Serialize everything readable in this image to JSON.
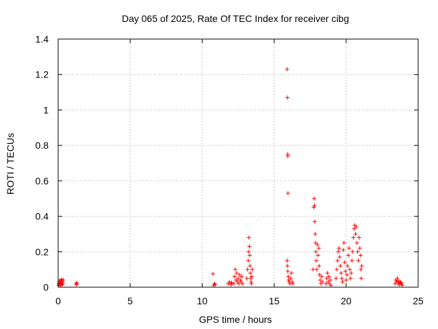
{
  "chart_data": {
    "type": "scatter",
    "title": "Day 065 of 2025, Rate Of TEC Index for receiver cibg",
    "xlabel": "GPS time / hours",
    "ylabel": "ROTI / TECUs",
    "xlim": [
      0,
      25
    ],
    "ylim": [
      0,
      1.4
    ],
    "xticks": [
      0,
      5,
      10,
      15,
      20,
      25
    ],
    "yticks": [
      0,
      0.2,
      0.4,
      0.6,
      0.8,
      1,
      1.2,
      1.4
    ],
    "xtick_labels": [
      "0",
      "5",
      "10",
      "15",
      "20",
      "25"
    ],
    "ytick_labels": [
      "0",
      "0.2",
      "0.4",
      "0.6",
      "0.8",
      "1",
      "1.2",
      "1.4"
    ],
    "grid": true,
    "marker": "+",
    "color": "#ff0000",
    "series": [
      {
        "name": "ROTI",
        "points": [
          [
            0.02,
            0.01
          ],
          [
            0.05,
            0.02
          ],
          [
            0.08,
            0.03
          ],
          [
            0.1,
            0.015
          ],
          [
            0.12,
            0.04
          ],
          [
            0.15,
            0.025
          ],
          [
            0.18,
            0.01
          ],
          [
            0.2,
            0.035
          ],
          [
            0.22,
            0.02
          ],
          [
            0.25,
            0.045
          ],
          [
            0.28,
            0.015
          ],
          [
            0.3,
            0.03
          ],
          [
            0.32,
            0.02
          ],
          [
            0.35,
            0.04
          ],
          [
            1.25,
            0.015
          ],
          [
            1.28,
            0.025
          ],
          [
            1.3,
            0.02
          ],
          [
            10.75,
            0.075
          ],
          [
            10.8,
            0.01
          ],
          [
            10.85,
            0.02
          ],
          [
            10.9,
            0.015
          ],
          [
            11.8,
            0.02
          ],
          [
            11.9,
            0.03
          ],
          [
            12.0,
            0.015
          ],
          [
            12.05,
            0.025
          ],
          [
            12.2,
            0.02
          ],
          [
            12.25,
            0.06
          ],
          [
            12.3,
            0.1
          ],
          [
            12.35,
            0.04
          ],
          [
            12.4,
            0.08
          ],
          [
            12.45,
            0.03
          ],
          [
            12.5,
            0.05
          ],
          [
            12.55,
            0.02
          ],
          [
            12.6,
            0.07
          ],
          [
            12.65,
            0.04
          ],
          [
            12.7,
            0.03
          ],
          [
            12.75,
            0.06
          ],
          [
            12.8,
            0.02
          ],
          [
            13.1,
            0.05
          ],
          [
            13.15,
            0.1
          ],
          [
            13.2,
            0.15
          ],
          [
            13.22,
            0.2
          ],
          [
            13.25,
            0.28
          ],
          [
            13.28,
            0.23
          ],
          [
            13.3,
            0.18
          ],
          [
            13.32,
            0.12
          ],
          [
            13.35,
            0.08
          ],
          [
            13.38,
            0.05
          ],
          [
            13.4,
            0.03
          ],
          [
            13.42,
            0.02
          ],
          [
            13.45,
            0.06
          ],
          [
            13.48,
            0.1
          ],
          [
            15.9,
            1.23
          ],
          [
            15.92,
            1.07
          ],
          [
            15.94,
            0.75
          ],
          [
            15.95,
            0.74
          ],
          [
            15.96,
            0.53
          ],
          [
            15.9,
            0.15
          ],
          [
            15.92,
            0.12
          ],
          [
            15.95,
            0.09
          ],
          [
            15.98,
            0.06
          ],
          [
            16.0,
            0.04
          ],
          [
            16.05,
            0.03
          ],
          [
            16.1,
            0.02
          ],
          [
            16.15,
            0.05
          ],
          [
            16.2,
            0.08
          ],
          [
            16.25,
            0.03
          ],
          [
            16.3,
            0.02
          ],
          [
            17.7,
            0.1
          ],
          [
            17.75,
            0.45
          ],
          [
            17.78,
            0.5
          ],
          [
            17.8,
            0.46
          ],
          [
            17.82,
            0.37
          ],
          [
            17.85,
            0.3
          ],
          [
            17.88,
            0.25
          ],
          [
            17.9,
            0.2
          ],
          [
            17.92,
            0.15
          ],
          [
            17.95,
            0.1
          ],
          [
            18.0,
            0.24
          ],
          [
            18.05,
            0.18
          ],
          [
            18.1,
            0.22
          ],
          [
            18.12,
            0.12
          ],
          [
            18.15,
            0.07
          ],
          [
            18.2,
            0.04
          ],
          [
            18.25,
            0.02
          ],
          [
            18.3,
            0.06
          ],
          [
            18.35,
            0.03
          ],
          [
            18.6,
            0.02
          ],
          [
            18.65,
            0.05
          ],
          [
            18.7,
            0.08
          ],
          [
            18.75,
            0.03
          ],
          [
            18.8,
            0.06
          ],
          [
            18.85,
            0.02
          ],
          [
            18.9,
            0.04
          ],
          [
            18.95,
            0.01
          ],
          [
            19.3,
            0.05
          ],
          [
            19.35,
            0.1
          ],
          [
            19.4,
            0.15
          ],
          [
            19.45,
            0.2
          ],
          [
            19.5,
            0.22
          ],
          [
            19.55,
            0.17
          ],
          [
            19.6,
            0.12
          ],
          [
            19.65,
            0.08
          ],
          [
            19.7,
            0.05
          ],
          [
            19.75,
            0.03
          ],
          [
            19.8,
            0.21
          ],
          [
            19.85,
            0.25
          ],
          [
            19.9,
            0.14
          ],
          [
            19.95,
            0.09
          ],
          [
            20.0,
            0.04
          ],
          [
            20.05,
            0.07
          ],
          [
            20.1,
            0.12
          ],
          [
            20.15,
            0.18
          ],
          [
            20.2,
            0.22
          ],
          [
            20.25,
            0.1
          ],
          [
            20.3,
            0.05
          ],
          [
            20.35,
            0.08
          ],
          [
            20.4,
            0.15
          ],
          [
            20.45,
            0.2
          ],
          [
            20.5,
            0.28
          ],
          [
            20.55,
            0.33
          ],
          [
            20.6,
            0.35
          ],
          [
            20.65,
            0.3
          ],
          [
            20.7,
            0.34
          ],
          [
            20.75,
            0.25
          ],
          [
            20.8,
            0.2
          ],
          [
            20.85,
            0.15
          ],
          [
            20.9,
            0.28
          ],
          [
            20.95,
            0.22
          ],
          [
            21.0,
            0.18
          ],
          [
            21.02,
            0.1
          ],
          [
            21.05,
            0.05
          ],
          [
            21.08,
            0.12
          ],
          [
            23.4,
            0.02
          ],
          [
            23.45,
            0.04
          ],
          [
            23.5,
            0.03
          ],
          [
            23.55,
            0.05
          ],
          [
            23.6,
            0.02
          ],
          [
            23.65,
            0.035
          ],
          [
            23.7,
            0.015
          ],
          [
            23.75,
            0.03
          ],
          [
            23.8,
            0.025
          ],
          [
            23.85,
            0.02
          ],
          [
            23.9,
            0.01
          ]
        ]
      }
    ]
  }
}
